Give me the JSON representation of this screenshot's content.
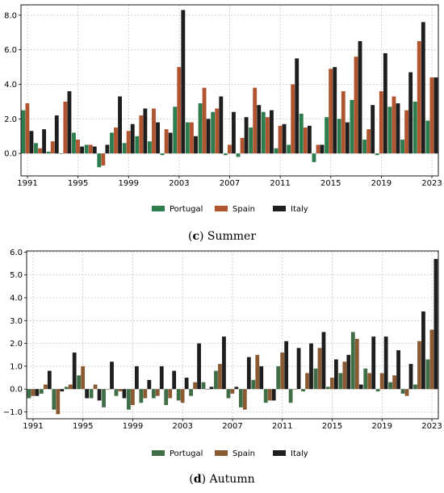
{
  "chart_data": [
    {
      "type": "bar",
      "caption_letter": "(c)",
      "caption_text": "Summer",
      "ylim": [
        -1.3,
        8.6
      ],
      "yticks": [
        0.0,
        2.0,
        4.0,
        6.0,
        8.0
      ],
      "ytick_labels": [
        "0.0",
        "2.0",
        "4.0",
        "6.0",
        "8.0"
      ],
      "x": [
        1991,
        1992,
        1993,
        1994,
        1995,
        1996,
        1997,
        1998,
        1999,
        2000,
        2001,
        2002,
        2003,
        2004,
        2005,
        2006,
        2007,
        2008,
        2009,
        2010,
        2011,
        2012,
        2013,
        2014,
        2015,
        2016,
        2017,
        2018,
        2019,
        2020,
        2021,
        2022,
        2023
      ],
      "xtick_labels": [
        "1991",
        "1995",
        "1999",
        "2003",
        "2007",
        "2011",
        "2015",
        "2019",
        "2023"
      ],
      "grid": true,
      "legend_position": "bottom-center",
      "series": [
        {
          "name": "Portugal",
          "color": "#2e7d4f",
          "values": [
            2.5,
            0.6,
            0.1,
            0.0,
            1.2,
            0.5,
            -0.8,
            1.2,
            0.6,
            1.0,
            0.7,
            -0.1,
            2.7,
            1.8,
            2.9,
            2.4,
            -0.1,
            -0.2,
            1.5,
            2.4,
            0.3,
            0.5,
            2.3,
            -0.5,
            2.1,
            2.0,
            3.1,
            0.8,
            -0.1,
            2.7,
            0.8,
            3.0,
            1.9
          ]
        },
        {
          "name": "Spain",
          "color": "#b05530",
          "values": [
            2.9,
            0.3,
            0.7,
            3.0,
            0.8,
            0.5,
            -0.7,
            1.5,
            1.3,
            2.2,
            2.6,
            1.4,
            5.0,
            1.8,
            3.8,
            2.6,
            0.5,
            0.9,
            3.8,
            2.1,
            1.6,
            4.0,
            1.5,
            0.5,
            4.9,
            3.6,
            5.6,
            1.4,
            3.6,
            3.3,
            2.5,
            6.5,
            4.4
          ]
        },
        {
          "name": "Italy",
          "color": "#1e1e1e",
          "values": [
            1.3,
            1.4,
            2.2,
            3.6,
            0.4,
            0.4,
            0.5,
            3.3,
            1.7,
            2.6,
            1.8,
            1.2,
            8.3,
            1.0,
            2.0,
            3.3,
            2.4,
            2.1,
            2.8,
            2.5,
            1.7,
            5.5,
            1.6,
            0.5,
            5.0,
            1.8,
            6.5,
            2.8,
            5.8,
            2.9,
            4.7,
            7.6,
            4.4
          ]
        }
      ]
    },
    {
      "type": "bar",
      "caption_letter": "(d)",
      "caption_text": "Autumn",
      "ylim": [
        -1.3,
        6.05
      ],
      "yticks": [
        -1.0,
        0.0,
        1.0,
        2.0,
        3.0,
        4.0,
        5.0,
        6.0
      ],
      "ytick_labels": [
        "−1.0",
        "0.0",
        "1.0",
        "2.0",
        "3.0",
        "4.0",
        "5.0",
        "6.0"
      ],
      "x": [
        1991,
        1992,
        1993,
        1994,
        1995,
        1996,
        1997,
        1998,
        1999,
        2000,
        2001,
        2002,
        2003,
        2004,
        2005,
        2006,
        2007,
        2008,
        2009,
        2010,
        2011,
        2012,
        2013,
        2014,
        2015,
        2016,
        2017,
        2018,
        2019,
        2020,
        2021,
        2022,
        2023
      ],
      "xtick_labels": [
        "1991",
        "1995",
        "1999",
        "2003",
        "2007",
        "2011",
        "2015",
        "2019",
        "2023"
      ],
      "grid": true,
      "legend_position": "bottom-center",
      "series": [
        {
          "name": "Portugal",
          "color": "#3f6e47",
          "values": [
            -0.4,
            -0.2,
            -0.9,
            0.1,
            0.6,
            -0.4,
            -0.8,
            -0.3,
            -0.9,
            -0.6,
            -0.4,
            -0.7,
            -0.5,
            -0.3,
            0.3,
            0.8,
            -0.4,
            -0.8,
            0.4,
            -0.6,
            1.0,
            -0.6,
            -0.1,
            0.9,
            0.1,
            0.7,
            2.5,
            0.9,
            -0.1,
            0.3,
            -0.2,
            0.2,
            1.3
          ]
        },
        {
          "name": "Spain",
          "color": "#8a5a32",
          "values": [
            -0.3,
            0.2,
            -1.1,
            0.2,
            1.0,
            0.2,
            0.0,
            -0.1,
            -0.7,
            -0.4,
            -0.3,
            -0.4,
            -0.6,
            0.3,
            0.0,
            1.1,
            -0.2,
            -0.9,
            1.5,
            -0.5,
            1.6,
            0.0,
            0.7,
            1.8,
            0.5,
            1.2,
            2.2,
            0.7,
            0.7,
            0.6,
            -0.3,
            2.1,
            2.6
          ]
        },
        {
          "name": "Italy",
          "color": "#1e1e1e",
          "values": [
            -0.3,
            0.8,
            -0.1,
            1.6,
            -0.4,
            -0.5,
            1.2,
            -0.4,
            1.0,
            0.4,
            1.0,
            0.8,
            0.5,
            2.0,
            0.1,
            2.3,
            0.1,
            1.4,
            1.0,
            -0.5,
            2.1,
            1.8,
            2.0,
            2.5,
            1.3,
            1.5,
            0.2,
            2.3,
            2.3,
            1.7,
            1.1,
            3.4,
            5.7
          ]
        }
      ]
    }
  ]
}
